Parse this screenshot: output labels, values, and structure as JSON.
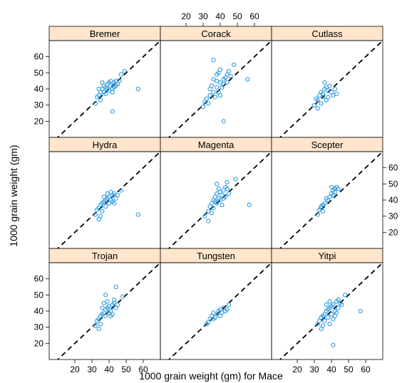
{
  "chart_data": {
    "type": "scatter",
    "layout": "trellis 3x3",
    "xlabel": "1000 grain weight (gm) for Mace",
    "ylabel": "1000 grain weight (gm)",
    "xlim": [
      5,
      70
    ],
    "ylim": [
      10,
      70
    ],
    "xticks": [
      "20",
      "30",
      "40",
      "50",
      "60"
    ],
    "yticks": [
      "20",
      "30",
      "40",
      "50",
      "60"
    ],
    "reference_line": "y = x (dashed)",
    "point_color": "#1f96e0",
    "strip_color": "#ffe5cc",
    "panels": [
      {
        "name": "Bremer",
        "points": [
          [
            32,
            31
          ],
          [
            33,
            35
          ],
          [
            34,
            36
          ],
          [
            35,
            38
          ],
          [
            36,
            40
          ],
          [
            37,
            42
          ],
          [
            38,
            41
          ],
          [
            39,
            43
          ],
          [
            40,
            44
          ],
          [
            41,
            42
          ],
          [
            42,
            40
          ],
          [
            43,
            44
          ],
          [
            44,
            45
          ],
          [
            36,
            44
          ],
          [
            38,
            37
          ],
          [
            40,
            39
          ],
          [
            42,
            38
          ],
          [
            44,
            42
          ],
          [
            35,
            33
          ],
          [
            37,
            38
          ],
          [
            39,
            40
          ],
          [
            41,
            45
          ],
          [
            43,
            41
          ],
          [
            45,
            43
          ],
          [
            47,
            49
          ],
          [
            49,
            51
          ],
          [
            57,
            40
          ],
          [
            42,
            26
          ],
          [
            34,
            40
          ],
          [
            46,
            45
          ]
        ]
      },
      {
        "name": "Corack",
        "points": [
          [
            30,
            29
          ],
          [
            32,
            34
          ],
          [
            34,
            36
          ],
          [
            36,
            38
          ],
          [
            38,
            41
          ],
          [
            40,
            44
          ],
          [
            42,
            46
          ],
          [
            44,
            49
          ],
          [
            38,
            49
          ],
          [
            40,
            52
          ],
          [
            36,
            58
          ],
          [
            42,
            20
          ],
          [
            44,
            44
          ],
          [
            35,
            42
          ],
          [
            39,
            38
          ],
          [
            41,
            41
          ],
          [
            43,
            47
          ],
          [
            37,
            35
          ],
          [
            33,
            31
          ],
          [
            45,
            51
          ],
          [
            40,
            36
          ],
          [
            42,
            43
          ],
          [
            36,
            46
          ],
          [
            48,
            55
          ],
          [
            56,
            46
          ],
          [
            38,
            45
          ],
          [
            34,
            40
          ],
          [
            46,
            48
          ],
          [
            31,
            32
          ],
          [
            39,
            50
          ]
        ]
      },
      {
        "name": "Cutlass",
        "points": [
          [
            30,
            30
          ],
          [
            31,
            34
          ],
          [
            32,
            33
          ],
          [
            33,
            36
          ],
          [
            34,
            38
          ],
          [
            35,
            37
          ],
          [
            36,
            40
          ],
          [
            37,
            41
          ],
          [
            38,
            39
          ],
          [
            40,
            38
          ],
          [
            41,
            36
          ],
          [
            42,
            40
          ],
          [
            43,
            37
          ],
          [
            36,
            44
          ],
          [
            38,
            35
          ],
          [
            34,
            31
          ],
          [
            39,
            42
          ],
          [
            32,
            28
          ],
          [
            37,
            33
          ],
          [
            35,
            35
          ]
        ]
      },
      {
        "name": "Hydra",
        "points": [
          [
            32,
            31
          ],
          [
            33,
            34
          ],
          [
            34,
            35
          ],
          [
            35,
            37
          ],
          [
            36,
            38
          ],
          [
            37,
            39
          ],
          [
            38,
            40
          ],
          [
            39,
            41
          ],
          [
            40,
            42
          ],
          [
            41,
            40
          ],
          [
            42,
            43
          ],
          [
            43,
            44
          ],
          [
            44,
            41
          ],
          [
            36,
            33
          ],
          [
            38,
            36
          ],
          [
            40,
            38
          ],
          [
            42,
            39
          ],
          [
            37,
            42
          ],
          [
            35,
            30
          ],
          [
            39,
            44
          ],
          [
            41,
            45
          ],
          [
            43,
            38
          ],
          [
            47,
            46
          ],
          [
            57,
            31
          ],
          [
            34,
            28
          ],
          [
            45,
            43
          ]
        ]
      },
      {
        "name": "Magenta",
        "points": [
          [
            31,
            30
          ],
          [
            33,
            33
          ],
          [
            34,
            36
          ],
          [
            35,
            38
          ],
          [
            36,
            40
          ],
          [
            37,
            42
          ],
          [
            38,
            44
          ],
          [
            39,
            41
          ],
          [
            40,
            45
          ],
          [
            41,
            43
          ],
          [
            42,
            46
          ],
          [
            43,
            48
          ],
          [
            44,
            47
          ],
          [
            36,
            35
          ],
          [
            38,
            38
          ],
          [
            40,
            40
          ],
          [
            42,
            41
          ],
          [
            35,
            32
          ],
          [
            37,
            39
          ],
          [
            39,
            47
          ],
          [
            41,
            37
          ],
          [
            43,
            42
          ],
          [
            45,
            44
          ],
          [
            49,
            53
          ],
          [
            57,
            37
          ],
          [
            33,
            27
          ],
          [
            38,
            50
          ],
          [
            44,
            51
          ]
        ]
      },
      {
        "name": "Scepter",
        "points": [
          [
            32,
            31
          ],
          [
            33,
            34
          ],
          [
            34,
            36
          ],
          [
            35,
            37
          ],
          [
            36,
            38
          ],
          [
            38,
            40
          ],
          [
            39,
            42
          ],
          [
            40,
            44
          ],
          [
            41,
            46
          ],
          [
            42,
            47
          ],
          [
            43,
            48
          ],
          [
            44,
            47
          ],
          [
            40,
            48
          ],
          [
            42,
            45
          ],
          [
            34,
            35
          ],
          [
            37,
            41
          ],
          [
            41,
            43
          ],
          [
            35,
            33
          ]
        ]
      },
      {
        "name": "Trojan",
        "points": [
          [
            32,
            31
          ],
          [
            33,
            34
          ],
          [
            34,
            35
          ],
          [
            35,
            37
          ],
          [
            36,
            38
          ],
          [
            37,
            39
          ],
          [
            38,
            41
          ],
          [
            39,
            42
          ],
          [
            40,
            43
          ],
          [
            41,
            40
          ],
          [
            42,
            44
          ],
          [
            43,
            45
          ],
          [
            44,
            42
          ],
          [
            36,
            42
          ],
          [
            38,
            37
          ],
          [
            40,
            39
          ],
          [
            42,
            38
          ],
          [
            37,
            45
          ],
          [
            35,
            32
          ],
          [
            39,
            46
          ],
          [
            41,
            37
          ],
          [
            43,
            47
          ],
          [
            44,
            55
          ],
          [
            38,
            50
          ],
          [
            34,
            29
          ],
          [
            45,
            44
          ],
          [
            48,
            49
          ]
        ]
      },
      {
        "name": "Tungsten",
        "points": [
          [
            32,
            32
          ],
          [
            34,
            35
          ],
          [
            35,
            37
          ],
          [
            36,
            39
          ],
          [
            38,
            38
          ],
          [
            39,
            40
          ],
          [
            40,
            41
          ],
          [
            41,
            39
          ],
          [
            42,
            42
          ],
          [
            43,
            40
          ],
          [
            44,
            41
          ],
          [
            37,
            36
          ],
          [
            33,
            33
          ],
          [
            40,
            37
          ],
          [
            45,
            44
          ],
          [
            36,
            35
          ]
        ]
      },
      {
        "name": "Yitpi",
        "points": [
          [
            32,
            32
          ],
          [
            33,
            34
          ],
          [
            34,
            36
          ],
          [
            35,
            37
          ],
          [
            36,
            38
          ],
          [
            37,
            40
          ],
          [
            38,
            41
          ],
          [
            39,
            42
          ],
          [
            40,
            43
          ],
          [
            41,
            44
          ],
          [
            42,
            40
          ],
          [
            43,
            46
          ],
          [
            44,
            47
          ],
          [
            36,
            34
          ],
          [
            38,
            36
          ],
          [
            40,
            38
          ],
          [
            42,
            37
          ],
          [
            37,
            44
          ],
          [
            35,
            31
          ],
          [
            39,
            46
          ],
          [
            41,
            35
          ],
          [
            43,
            39
          ],
          [
            45,
            45
          ],
          [
            48,
            50
          ],
          [
            57,
            40
          ],
          [
            41,
            19
          ],
          [
            34,
            29
          ],
          [
            46,
            44
          ],
          [
            39,
            32
          ],
          [
            44,
            42
          ]
        ]
      }
    ]
  }
}
